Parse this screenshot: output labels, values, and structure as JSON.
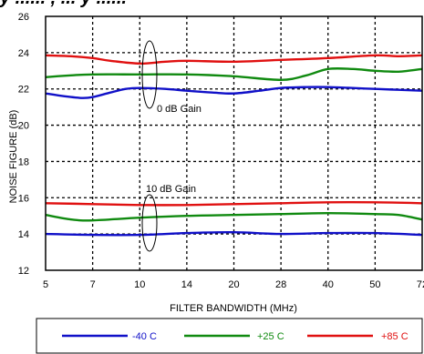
{
  "chart_data": {
    "type": "line",
    "title": "",
    "title_fragment": "y ...... , ... y ......",
    "xlabel": "FILTER BANDWIDTH (MHz)",
    "ylabel": "NOISE FIGURE (dB)",
    "x_tick_labels": [
      "5",
      "7",
      "10",
      "14",
      "20",
      "28",
      "40",
      "50",
      "72"
    ],
    "y_ticks": [
      12,
      14,
      16,
      18,
      20,
      22,
      24,
      26
    ],
    "ylim": [
      12,
      26
    ],
    "grid": "dotted",
    "legend_position": "bottom",
    "annotations": [
      {
        "text": "0 dB Gain",
        "x": "10",
        "y": 21.3
      },
      {
        "text": "10 dB Gain",
        "x": "10",
        "y": 16.5
      }
    ],
    "series": [
      {
        "name": "-40 C",
        "color": "#1010c8",
        "group": "0 dB Gain",
        "x": [
          5,
          5.7,
          6.5,
          7,
          8,
          9,
          10,
          12,
          14,
          17,
          20,
          24,
          28,
          34,
          40,
          45,
          50,
          60,
          72
        ],
        "y": [
          21.75,
          21.6,
          21.5,
          21.55,
          21.8,
          22.0,
          22.05,
          22.0,
          21.9,
          21.8,
          21.75,
          21.9,
          22.05,
          22.1,
          22.1,
          22.05,
          22.0,
          21.95,
          21.9
        ]
      },
      {
        "name": "+25 C",
        "color": "#108a10",
        "group": "0 dB Gain",
        "x": [
          5,
          6,
          7,
          10,
          14,
          20,
          28,
          34,
          40,
          45,
          50,
          60,
          72
        ],
        "y": [
          22.65,
          22.75,
          22.8,
          22.8,
          22.8,
          22.7,
          22.5,
          22.75,
          23.1,
          23.1,
          23.0,
          22.95,
          23.1
        ]
      },
      {
        "name": "+85 C",
        "color": "#e01010",
        "group": "0 dB Gain",
        "x": [
          5,
          6,
          7,
          8,
          10,
          12,
          14,
          20,
          28,
          40,
          50,
          60,
          72
        ],
        "y": [
          23.85,
          23.8,
          23.7,
          23.55,
          23.4,
          23.5,
          23.55,
          23.5,
          23.6,
          23.7,
          23.85,
          23.8,
          23.85
        ]
      },
      {
        "name": "-40 C",
        "color": "#1010c8",
        "group": "10 dB Gain",
        "x": [
          5,
          7,
          10,
          14,
          20,
          28,
          40,
          50,
          72
        ],
        "y": [
          14.0,
          13.95,
          13.95,
          14.05,
          14.1,
          14.0,
          14.05,
          14.05,
          13.95
        ]
      },
      {
        "name": "+25 C",
        "color": "#108a10",
        "group": "10 dB Gain",
        "x": [
          5,
          6,
          7,
          10,
          14,
          20,
          28,
          40,
          50,
          60,
          72
        ],
        "y": [
          15.05,
          14.8,
          14.75,
          14.9,
          15.0,
          15.05,
          15.1,
          15.15,
          15.1,
          15.05,
          14.8
        ]
      },
      {
        "name": "+85 C",
        "color": "#e01010",
        "group": "10 dB Gain",
        "x": [
          5,
          7,
          10,
          14,
          20,
          28,
          40,
          50,
          72
        ],
        "y": [
          15.7,
          15.65,
          15.6,
          15.6,
          15.65,
          15.7,
          15.75,
          15.75,
          15.7
        ]
      }
    ],
    "legend": [
      {
        "label": "-40 C",
        "color": "#1010c8"
      },
      {
        "label": "+25 C",
        "color": "#108a10"
      },
      {
        "label": "+85 C",
        "color": "#e01010"
      }
    ]
  }
}
